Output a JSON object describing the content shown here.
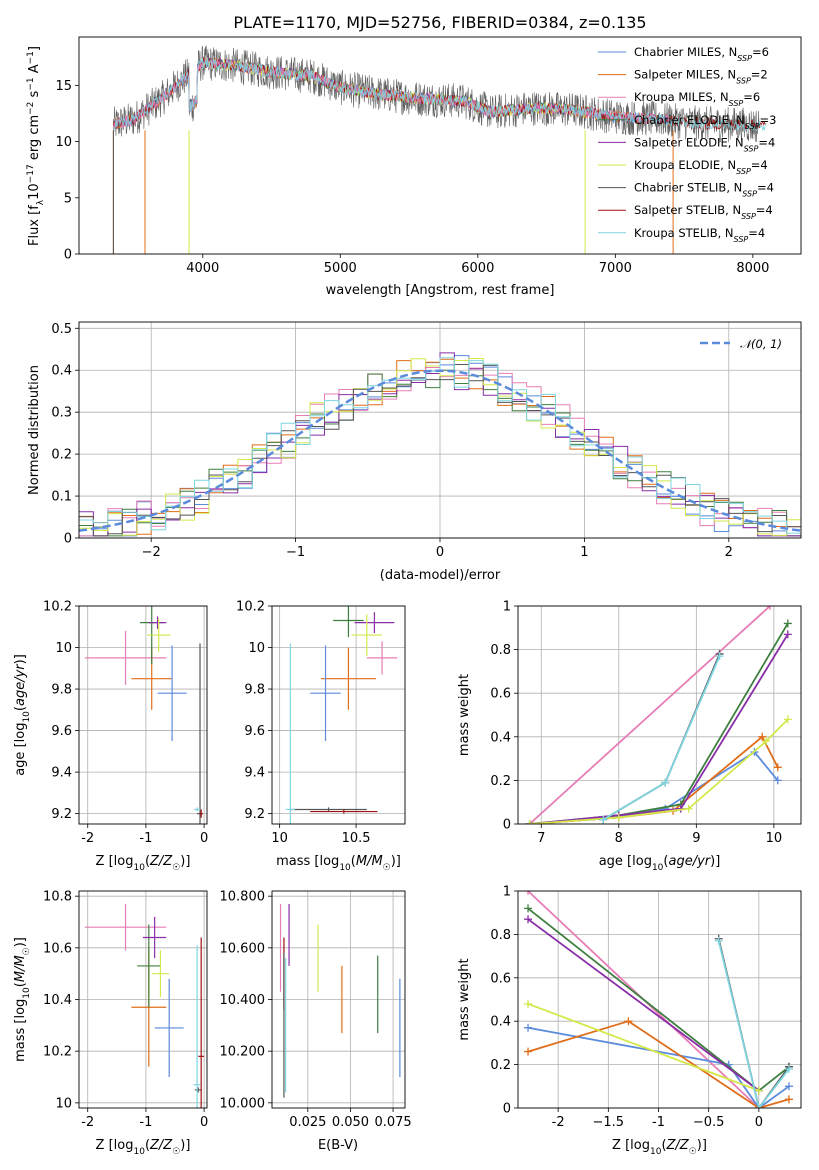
{
  "title": "PLATE=1170, MJD=52756, FIBERID=0384, z=0.135",
  "colors": {
    "Chabrier MILES": "#5b8bdc",
    "Salpeter MILES": "#e06d19",
    "Kroupa MILES": "#e77db6",
    "Chabrier ELODIE": "#3f7f3f",
    "Salpeter ELODIE": "#8a2ea8",
    "Kroupa ELODIE": "#d4e84a",
    "Chabrier STELIB": "#555555",
    "Salpeter STELIB": "#a01010",
    "Kroupa STELIB": "#7fd6e0",
    "gauss": "#5b8bdc"
  },
  "chart_data": [
    {
      "id": "spectrum",
      "type": "line",
      "xlabel": "wavelength [Angstrom, rest frame]",
      "ylabel": "Flux [f_λ10^-17 erg cm^-2 s^-1 A^-1]",
      "xlim": [
        3100,
        8350
      ],
      "ylim": [
        0,
        19.3
      ],
      "xticks": [
        4000,
        5000,
        6000,
        7000,
        8000
      ],
      "yticks": [
        0,
        5,
        10,
        15
      ],
      "legend_position": "right",
      "legend": [
        {
          "name": "Chabrier MILES",
          "nssp": "6"
        },
        {
          "name": "Salpeter MILES",
          "nssp": "2"
        },
        {
          "name": "Kroupa MILES",
          "nssp": "6"
        },
        {
          "name": "Chabrier ELODIE",
          "nssp": "3"
        },
        {
          "name": "Salpeter ELODIE",
          "nssp": "4"
        },
        {
          "name": "Kroupa ELODIE",
          "nssp": "4"
        },
        {
          "name": "Chabrier STELIB",
          "nssp": "4"
        },
        {
          "name": "Salpeter STELIB",
          "nssp": "4"
        },
        {
          "name": "Kroupa STELIB",
          "nssp": "4"
        }
      ],
      "x": [
        3350,
        3500,
        3700,
        3900,
        4000,
        4200,
        4500,
        4800,
        5000,
        5300,
        5600,
        5900,
        6100,
        6400,
        6700,
        7000,
        7300,
        7600,
        7900,
        8100
      ],
      "y": [
        11.5,
        12.0,
        13.8,
        16.0,
        17.0,
        16.8,
        16.2,
        15.8,
        14.8,
        14.2,
        13.8,
        13.6,
        12.6,
        13.0,
        12.8,
        12.2,
        12.0,
        11.6,
        11.5,
        11.4
      ]
    },
    {
      "id": "residuals",
      "type": "histogram",
      "xlabel": "(data-model)/error",
      "ylabel": "Normed distribution",
      "xlim": [
        -2.5,
        2.5
      ],
      "ylim": [
        0,
        0.515
      ],
      "xticks": [
        -2,
        -1,
        0,
        1,
        2
      ],
      "yticks": [
        0.0,
        0.1,
        0.2,
        0.3,
        0.4,
        0.5
      ],
      "legend_label": "𝒩(0, 1)",
      "legend_position": "top-right",
      "grid": true
    },
    {
      "id": "age_vs_Z",
      "type": "errorbar",
      "xlabel": "Z [log10(Z/Z☉)]",
      "ylabel": "age  [log10(age/yr)]",
      "xlim": [
        -2.15,
        0.05
      ],
      "ylim": [
        9.15,
        10.2
      ],
      "xticks": [
        -2,
        -1,
        0
      ],
      "yticks": [
        9.2,
        9.4,
        9.6,
        9.8,
        10.0,
        10.2
      ],
      "points": [
        {
          "series": "Kroupa MILES",
          "x": -1.35,
          "y": 9.95,
          "xerr": 0.7,
          "yerr": 0.13
        },
        {
          "series": "Salpeter MILES",
          "x": -0.9,
          "y": 9.85,
          "xerr": 0.35,
          "yerr": 0.15
        },
        {
          "series": "Chabrier MILES",
          "x": -0.55,
          "y": 9.78,
          "xerr": 0.25,
          "yerr": 0.23
        },
        {
          "series": "Chabrier ELODIE",
          "x": -0.9,
          "y": 10.12,
          "xerr": 0.2,
          "yerr": 0.2
        },
        {
          "series": "Salpeter ELODIE",
          "x": -0.8,
          "y": 10.12,
          "xerr": 0.15,
          "yerr": 0.03
        },
        {
          "series": "Kroupa ELODIE",
          "x": -0.78,
          "y": 10.06,
          "xerr": 0.2,
          "yerr": 0.08
        },
        {
          "series": "Chabrier STELIB",
          "x": -0.07,
          "y": 9.2,
          "xerr": 0.05,
          "yerr": 0.82
        },
        {
          "series": "Salpeter STELIB",
          "x": -0.05,
          "y": 9.2,
          "xerr": 0.03,
          "yerr": 0.02
        },
        {
          "series": "Kroupa STELIB",
          "x": -0.12,
          "y": 9.22,
          "xerr": 0.05,
          "yerr": 0.01
        }
      ]
    },
    {
      "id": "age_vs_mass",
      "type": "errorbar",
      "xlabel": "mass [log10(M/M☉)]",
      "ylabel": "",
      "xlim": [
        9.95,
        10.82
      ],
      "ylim": [
        9.15,
        10.2
      ],
      "xticks": [
        10.0,
        10.5
      ],
      "yticks": [
        9.2,
        9.4,
        9.6,
        9.8,
        10.0,
        10.2
      ],
      "points": [
        {
          "series": "Kroupa MILES",
          "x": 10.67,
          "y": 9.95,
          "xerr": 0.1,
          "yerr": 0.08
        },
        {
          "series": "Salpeter MILES",
          "x": 10.45,
          "y": 9.85,
          "xerr": 0.18,
          "yerr": 0.15
        },
        {
          "series": "Chabrier MILES",
          "x": 10.3,
          "y": 9.78,
          "xerr": 0.1,
          "yerr": 0.23
        },
        {
          "series": "Chabrier ELODIE",
          "x": 10.45,
          "y": 10.13,
          "xerr": 0.1,
          "yerr": 0.08
        },
        {
          "series": "Salpeter ELODIE",
          "x": 10.62,
          "y": 10.12,
          "xerr": 0.13,
          "yerr": 0.05
        },
        {
          "series": "Kroupa ELODIE",
          "x": 10.57,
          "y": 10.06,
          "xerr": 0.1,
          "yerr": 0.1
        },
        {
          "series": "Chabrier STELIB",
          "x": 10.32,
          "y": 9.22,
          "xerr": 0.25,
          "yerr": 0.01
        },
        {
          "series": "Salpeter STELIB",
          "x": 10.42,
          "y": 9.21,
          "xerr": 0.22,
          "yerr": 0.01
        },
        {
          "series": "Kroupa STELIB",
          "x": 10.07,
          "y": 9.22,
          "xerr": 0.03,
          "yerr": 0.8
        }
      ]
    },
    {
      "id": "massweight_vs_age",
      "type": "line",
      "xlabel": "age  [log10(age/yr)]",
      "ylabel": "mass weight",
      "xlim": [
        6.7,
        10.35
      ],
      "ylim": [
        0,
        1
      ],
      "xticks": [
        7,
        8,
        9,
        10
      ],
      "yticks": [
        0.0,
        0.2,
        0.4,
        0.6,
        0.8,
        1.0
      ],
      "series": [
        {
          "name": "Kroupa MILES",
          "x": [
            6.85,
            9.95
          ],
          "y": [
            0.0,
            1.0
          ]
        },
        {
          "name": "Chabrier MILES",
          "x": [
            6.85,
            8.0,
            8.6,
            9.75,
            10.05
          ],
          "y": [
            0.0,
            0.03,
            0.07,
            0.33,
            0.2
          ]
        },
        {
          "name": "Salpeter MILES",
          "x": [
            6.85,
            8.0,
            8.7,
            9.85,
            10.05
          ],
          "y": [
            0.0,
            0.03,
            0.06,
            0.4,
            0.26
          ]
        },
        {
          "name": "Chabrier ELODIE",
          "x": [
            6.85,
            8.0,
            8.8,
            10.18
          ],
          "y": [
            0.0,
            0.04,
            0.09,
            0.92
          ]
        },
        {
          "name": "Salpeter ELODIE",
          "x": [
            6.85,
            8.0,
            8.8,
            10.18
          ],
          "y": [
            0.0,
            0.04,
            0.07,
            0.87
          ]
        },
        {
          "name": "Kroupa ELODIE",
          "x": [
            6.85,
            8.0,
            8.9,
            9.9,
            10.18
          ],
          "y": [
            0.0,
            0.03,
            0.07,
            0.38,
            0.48
          ]
        },
        {
          "name": "Chabrier STELIB",
          "x": [
            7.8,
            8.6,
            9.3
          ],
          "y": [
            0.02,
            0.19,
            0.78
          ]
        },
        {
          "name": "Kroupa STELIB",
          "x": [
            7.8,
            8.6,
            9.3
          ],
          "y": [
            0.02,
            0.19,
            0.77
          ]
        }
      ]
    },
    {
      "id": "mass_vs_Z",
      "type": "errorbar",
      "xlabel": "Z [log10(Z/Z☉)]",
      "ylabel": "mass [log10(M/M☉)]",
      "xlim": [
        -2.15,
        0.05
      ],
      "ylim": [
        9.98,
        10.82
      ],
      "xticks": [
        -2,
        -1,
        0
      ],
      "yticks": [
        10.0,
        10.2,
        10.4,
        10.6,
        10.8
      ],
      "points": [
        {
          "series": "Kroupa MILES",
          "x": -1.35,
          "y": 10.68,
          "xerr": 0.7,
          "yerr": 0.09
        },
        {
          "series": "Salpeter MILES",
          "x": -0.95,
          "y": 10.37,
          "xerr": 0.3,
          "yerr": 0.23
        },
        {
          "series": "Chabrier MILES",
          "x": -0.6,
          "y": 10.29,
          "xerr": 0.25,
          "yerr": 0.19
        },
        {
          "series": "Chabrier ELODIE",
          "x": -0.95,
          "y": 10.53,
          "xerr": 0.2,
          "yerr": 0.16
        },
        {
          "series": "Salpeter ELODIE",
          "x": -0.85,
          "y": 10.64,
          "xerr": 0.2,
          "yerr": 0.08
        },
        {
          "series": "Kroupa ELODIE",
          "x": -0.75,
          "y": 10.5,
          "xerr": 0.15,
          "yerr": 0.09
        },
        {
          "series": "Chabrier STELIB",
          "x": -0.1,
          "y": 10.05,
          "xerr": 0.06,
          "yerr": 0.01
        },
        {
          "series": "Salpeter STELIB",
          "x": -0.05,
          "y": 10.18,
          "xerr": 0.05,
          "yerr": 0.46
        },
        {
          "series": "Kroupa STELIB",
          "x": -0.12,
          "y": 10.07,
          "xerr": 0.06,
          "yerr": 0.54
        }
      ]
    },
    {
      "id": "mass_vs_EBV",
      "type": "errorbar",
      "xlabel": "E(B-V)",
      "ylabel": "",
      "xlim": [
        0.004,
        0.082
      ],
      "ylim": [
        9.98,
        10.82
      ],
      "xticks": [
        0.025,
        0.05,
        0.075
      ],
      "yticks": [
        10.0,
        10.2,
        10.4,
        10.6,
        10.8
      ],
      "points": [
        {
          "series": "Kroupa MILES",
          "x": 0.009,
          "y": 10.6,
          "yerr": 0.17
        },
        {
          "series": "Salpeter ELODIE",
          "x": 0.014,
          "y": 10.65,
          "yerr": 0.12
        },
        {
          "series": "Salpeter STELIB",
          "x": 0.011,
          "y": 10.5,
          "yerr": 0.14
        },
        {
          "series": "Chabrier STELIB",
          "x": 0.011,
          "y": 10.3,
          "yerr": 0.28
        },
        {
          "series": "Kroupa STELIB",
          "x": 0.012,
          "y": 10.3,
          "yerr": 0.26
        },
        {
          "series": "Kroupa ELODIE",
          "x": 0.031,
          "y": 10.56,
          "yerr": 0.13
        },
        {
          "series": "Salpeter MILES",
          "x": 0.045,
          "y": 10.4,
          "yerr": 0.13
        },
        {
          "series": "Chabrier ELODIE",
          "x": 0.066,
          "y": 10.42,
          "yerr": 0.15
        },
        {
          "series": "Chabrier MILES",
          "x": 0.079,
          "y": 10.29,
          "yerr": 0.19
        }
      ]
    },
    {
      "id": "massweight_vs_Z",
      "type": "line",
      "xlabel": "Z [log10(Z/Z☉)]",
      "ylabel": "mass weight",
      "xlim": [
        -2.4,
        0.42
      ],
      "ylim": [
        0,
        1
      ],
      "xticks": [
        -2.0,
        -1.5,
        -1.0,
        -0.5,
        0.0
      ],
      "yticks": [
        0.0,
        0.2,
        0.4,
        0.6,
        0.8,
        1.0
      ],
      "series": [
        {
          "name": "Kroupa MILES",
          "x": [
            -2.3,
            0.0
          ],
          "y": [
            1.0,
            0.0
          ]
        },
        {
          "name": "Chabrier MILES",
          "x": [
            -2.3,
            -0.3,
            0.0,
            0.3
          ],
          "y": [
            0.37,
            0.2,
            0.0,
            0.1
          ]
        },
        {
          "name": "Salpeter MILES",
          "x": [
            -2.3,
            -1.3,
            0.0,
            0.3
          ],
          "y": [
            0.26,
            0.4,
            0.0,
            0.04
          ]
        },
        {
          "name": "Chabrier ELODIE",
          "x": [
            -2.3,
            0.0,
            0.3
          ],
          "y": [
            0.92,
            0.08,
            0.19
          ]
        },
        {
          "name": "Salpeter ELODIE",
          "x": [
            -2.3,
            0.0
          ],
          "y": [
            0.87,
            0.08
          ]
        },
        {
          "name": "Kroupa ELODIE",
          "x": [
            -2.3,
            0.0
          ],
          "y": [
            0.48,
            0.08
          ]
        },
        {
          "name": "Chabrier STELIB",
          "x": [
            -0.4,
            0.0,
            0.3
          ],
          "y": [
            0.78,
            0.0,
            0.19
          ]
        },
        {
          "name": "Kroupa STELIB",
          "x": [
            -0.4,
            0.0,
            0.3
          ],
          "y": [
            0.77,
            0.0,
            0.18
          ]
        }
      ]
    }
  ]
}
